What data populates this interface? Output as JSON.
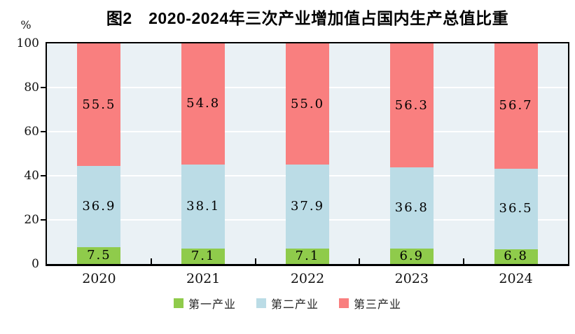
{
  "chart_data": {
    "type": "bar",
    "stacked": true,
    "title": "图2　2020-2024年三次产业增加值占国内生产总值比重",
    "categories": [
      "2020",
      "2021",
      "2022",
      "2023",
      "2024"
    ],
    "series": [
      {
        "name": "第一产业",
        "color": "#8FCB4B",
        "values": [
          7.5,
          7.1,
          7.1,
          6.9,
          6.8
        ]
      },
      {
        "name": "第二产业",
        "color": "#BBDCE6",
        "values": [
          36.9,
          38.1,
          37.9,
          36.8,
          36.5
        ]
      },
      {
        "name": "第三产业",
        "color": "#F97F7F",
        "values": [
          55.5,
          54.8,
          55.0,
          56.3,
          56.7
        ]
      }
    ],
    "xlabel": "",
    "ylabel": "%",
    "ylim": [
      0,
      100
    ],
    "yticks": [
      0,
      20,
      40,
      60,
      80,
      100
    ],
    "grid": true,
    "gridline_color": "#FFFFFF",
    "plot_background": "#EAF1F5",
    "legend_position": "bottom"
  }
}
